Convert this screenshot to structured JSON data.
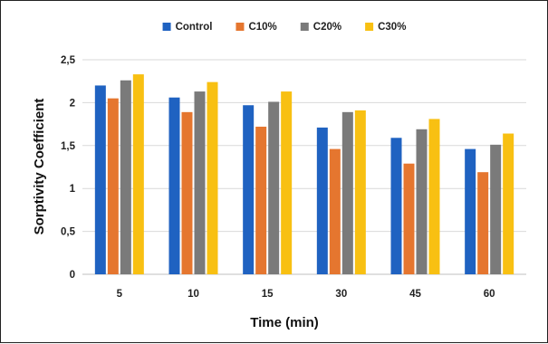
{
  "chart_data": {
    "type": "bar",
    "title": "",
    "xlabel": "Time (min)",
    "ylabel": "Sorptivity Coefficient",
    "categories": [
      "5",
      "10",
      "15",
      "30",
      "45",
      "60"
    ],
    "ylim": [
      0,
      2.5
    ],
    "yticks": [
      "0",
      "0,5",
      "1",
      "1,5",
      "2",
      "2,5"
    ],
    "ytick_values": [
      0,
      0.5,
      1,
      1.5,
      2,
      2.5
    ],
    "grid": true,
    "legend_position": "top",
    "series": [
      {
        "name": "Control",
        "color": "#1F62C1",
        "values": [
          2.2,
          2.06,
          1.97,
          1.71,
          1.59,
          1.46
        ]
      },
      {
        "name": "C10%",
        "color": "#E5762F",
        "values": [
          2.05,
          1.89,
          1.72,
          1.46,
          1.29,
          1.19
        ]
      },
      {
        "name": "C20%",
        "color": "#7A7A7A",
        "values": [
          2.26,
          2.13,
          2.01,
          1.89,
          1.69,
          1.51
        ]
      },
      {
        "name": "C30%",
        "color": "#F8C012",
        "values": [
          2.33,
          2.24,
          2.13,
          1.91,
          1.81,
          1.64
        ]
      }
    ]
  }
}
